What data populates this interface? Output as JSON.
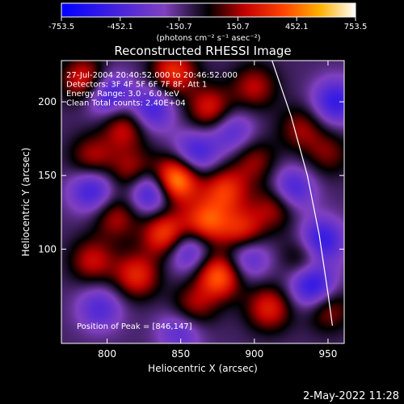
{
  "chart_data": {
    "type": "heatmap",
    "title": "Reconstructed RHESSI Image",
    "xlabel": "Heliocentric X (arcsec)",
    "ylabel": "Heliocentric Y (arcsec)",
    "xlim": [
      769,
      961
    ],
    "ylim": [
      36,
      228
    ],
    "x_ticks": [
      800,
      850,
      900,
      950
    ],
    "y_ticks": [
      100,
      150,
      200
    ],
    "colorbar": {
      "min": -753.5,
      "max": 753.5,
      "tick_values": [
        -753.5,
        -452.1,
        -150.7,
        150.7,
        452.1,
        753.5
      ],
      "tick_labels": [
        "-753.5",
        "-452.1",
        "-150.7",
        "150.7",
        "452.1",
        "753.5"
      ],
      "unit_label": "(photons cm⁻² s⁻¹ asec⁻²)"
    },
    "annotations": [
      "27-Jul-2004 20:40:52.000 to 20:46:52.000",
      "Detectors: 3F 4F 5F 6F 7F 8F, Att 1",
      "Energy Range: 3.0 - 6.0 keV",
      "Clean     Total counts: 2.40E+04"
    ],
    "peak_label": "Position of Peak = [846,147]",
    "sources": [
      {
        "x": 846,
        "y": 147,
        "v": 753
      },
      {
        "x": 785,
        "y": 215,
        "v": 420
      },
      {
        "x": 845,
        "y": 220,
        "v": 430
      },
      {
        "x": 870,
        "y": 195,
        "v": 380
      },
      {
        "x": 900,
        "y": 210,
        "v": 300
      },
      {
        "x": 812,
        "y": 183,
        "v": 350
      },
      {
        "x": 880,
        "y": 140,
        "v": 420
      },
      {
        "x": 900,
        "y": 160,
        "v": 260
      },
      {
        "x": 818,
        "y": 152,
        "v": 330
      },
      {
        "x": 790,
        "y": 162,
        "v": 300
      },
      {
        "x": 806,
        "y": 122,
        "v": 300
      },
      {
        "x": 840,
        "y": 110,
        "v": 520
      },
      {
        "x": 867,
        "y": 118,
        "v": 500
      },
      {
        "x": 892,
        "y": 112,
        "v": 420
      },
      {
        "x": 915,
        "y": 130,
        "v": 350
      },
      {
        "x": 876,
        "y": 82,
        "v": 560
      },
      {
        "x": 910,
        "y": 60,
        "v": 380
      },
      {
        "x": 820,
        "y": 82,
        "v": 400
      },
      {
        "x": 790,
        "y": 92,
        "v": 320
      },
      {
        "x": 935,
        "y": 95,
        "v": 300
      },
      {
        "x": 950,
        "y": 165,
        "v": 220
      },
      {
        "x": 950,
        "y": 60,
        "v": 300
      },
      {
        "x": 932,
        "y": 182,
        "v": 260
      },
      {
        "x": 858,
        "y": 60,
        "v": 300
      },
      {
        "x": 830,
        "y": 140,
        "v": -550
      },
      {
        "x": 800,
        "y": 205,
        "v": -420
      },
      {
        "x": 830,
        "y": 195,
        "v": -380
      },
      {
        "x": 790,
        "y": 140,
        "v": -400
      },
      {
        "x": 860,
        "y": 165,
        "v": -380
      },
      {
        "x": 925,
        "y": 140,
        "v": -420
      },
      {
        "x": 945,
        "y": 105,
        "v": -500
      },
      {
        "x": 940,
        "y": 75,
        "v": -520
      },
      {
        "x": 955,
        "y": 200,
        "v": -420
      },
      {
        "x": 855,
        "y": 100,
        "v": -400
      },
      {
        "x": 895,
        "y": 95,
        "v": -350
      },
      {
        "x": 885,
        "y": 180,
        "v": -300
      },
      {
        "x": 795,
        "y": 60,
        "v": -300
      },
      {
        "x": 850,
        "y": 45,
        "v": -300
      }
    ],
    "limb_curve": [
      [
        912,
        228
      ],
      [
        925,
        190
      ],
      [
        936,
        150
      ],
      [
        944,
        110
      ],
      [
        950,
        70
      ],
      [
        953,
        48
      ]
    ]
  },
  "footer_date": "2-May-2022 11:28"
}
